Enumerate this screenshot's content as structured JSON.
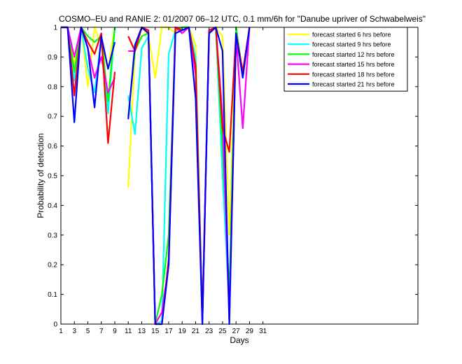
{
  "chart_data": {
    "type": "line",
    "title": "COSMO–EU and RANIE 2: 01/2007 06–12 UTC, 0.1 mm/6h for \"Danube upriver of Schwabelweis\"",
    "xlabel": "Days",
    "ylabel": "Probability of detection",
    "xlim": [
      1,
      54
    ],
    "ylim": [
      0,
      1
    ],
    "x_ticks": [
      1,
      3,
      5,
      7,
      9,
      11,
      13,
      15,
      17,
      19,
      21,
      23,
      25,
      27,
      29,
      31
    ],
    "y_ticks": [
      0,
      0.1,
      0.2,
      0.3,
      0.4,
      0.5,
      0.6,
      0.7,
      0.8,
      0.9,
      1
    ],
    "y_tick_labels": [
      "0",
      "0.1",
      "0.2",
      "0.3",
      "0.4",
      "0.5",
      "0.6",
      "0.7",
      "0.8",
      "0.9",
      "1"
    ],
    "legend_position": "top-right",
    "series": [
      {
        "name": "forecast started 6 hrs before",
        "color": "#ffff00",
        "points": [
          [
            1,
            1
          ],
          [
            2,
            1
          ],
          [
            3,
            0.88
          ],
          [
            4,
            1
          ],
          [
            5,
            0.8
          ],
          [
            6,
            1
          ],
          [
            7,
            0.94
          ],
          [
            8,
            0.86
          ],
          [
            9,
            1
          ],
          null,
          [
            11,
            0.46
          ],
          [
            12,
            0.92
          ],
          [
            13,
            1
          ],
          [
            14,
            0.97
          ],
          [
            15,
            0.83
          ],
          [
            16,
            1
          ],
          [
            17,
            1
          ],
          [
            18,
            0.98
          ],
          [
            19,
            1
          ],
          [
            20,
            1
          ],
          [
            21,
            0.94
          ],
          [
            22,
            0.03
          ],
          [
            23,
            0.98
          ],
          [
            24,
            1
          ],
          [
            25,
            0.97
          ],
          [
            26,
            0.3
          ],
          [
            27,
            1
          ],
          [
            28,
            0.84
          ],
          [
            29,
            1
          ]
        ]
      },
      {
        "name": "forecast started 9 hrs before",
        "color": "#00ffff",
        "points": [
          [
            1,
            1
          ],
          [
            2,
            1
          ],
          [
            3,
            0.82
          ],
          [
            4,
            1
          ],
          [
            5,
            0.86
          ],
          [
            6,
            0.78
          ],
          [
            7,
            0.96
          ],
          [
            8,
            0.71
          ],
          [
            9,
            1
          ],
          null,
          [
            11,
            0.77
          ],
          [
            12,
            0.64
          ],
          [
            13,
            0.93
          ],
          [
            14,
            0.97
          ],
          [
            15,
            0
          ],
          [
            16,
            0.01
          ],
          [
            17,
            0.91
          ],
          [
            18,
            0.99
          ],
          [
            19,
            1
          ],
          [
            20,
            1
          ],
          [
            21,
            0.9
          ],
          [
            22,
            0.02
          ],
          [
            23,
            0.98
          ],
          [
            24,
            1
          ],
          [
            25,
            0.5
          ],
          [
            26,
            0.05
          ],
          [
            27,
            1
          ],
          [
            28,
            0.84
          ],
          [
            29,
            1
          ]
        ]
      },
      {
        "name": "forecast started 12 hrs before",
        "color": "#00ff00",
        "points": [
          [
            1,
            1
          ],
          [
            2,
            1
          ],
          [
            3,
            0.85
          ],
          [
            4,
            1
          ],
          [
            5,
            0.97
          ],
          [
            6,
            0.95
          ],
          [
            7,
            0.97
          ],
          [
            8,
            0.75
          ],
          [
            9,
            1
          ],
          null,
          [
            11,
            0.7
          ],
          [
            12,
            0.92
          ],
          [
            13,
            0.97
          ],
          [
            14,
            0.98
          ],
          [
            15,
            0
          ],
          [
            16,
            0.1
          ],
          [
            17,
            0.3
          ],
          [
            18,
            0.99
          ],
          [
            19,
            1
          ],
          [
            20,
            1
          ],
          [
            21,
            0.87
          ],
          [
            22,
            0.02
          ],
          [
            23,
            0.98
          ],
          [
            24,
            1
          ],
          [
            25,
            0.6
          ],
          [
            26,
            0.1
          ],
          [
            27,
            1
          ],
          [
            28,
            0.84
          ],
          [
            29,
            1
          ]
        ]
      },
      {
        "name": "forecast started 15 hrs before",
        "color": "#ff00ff",
        "points": [
          [
            1,
            1
          ],
          [
            2,
            1
          ],
          [
            3,
            0.9
          ],
          [
            4,
            1
          ],
          [
            5,
            0.93
          ],
          [
            6,
            0.83
          ],
          [
            7,
            0.9
          ],
          [
            8,
            0.78
          ],
          [
            9,
            0.83
          ],
          null,
          [
            11,
            0.92
          ],
          [
            12,
            0.92
          ],
          [
            13,
            1
          ],
          [
            14,
            0.98
          ],
          [
            15,
            0
          ],
          [
            16,
            0.04
          ],
          [
            17,
            0.2
          ],
          [
            18,
            1
          ],
          [
            19,
            0.98
          ],
          [
            20,
            1
          ],
          [
            21,
            0.84
          ],
          [
            22,
            0.02
          ],
          [
            23,
            0.99
          ],
          [
            24,
            1
          ],
          [
            25,
            0.7
          ],
          [
            26,
            0.01
          ],
          [
            27,
            0.97
          ],
          [
            28,
            0.66
          ],
          [
            29,
            1
          ]
        ]
      },
      {
        "name": "forecast started 18 hrs before",
        "color": "#ff0000",
        "points": [
          [
            1,
            1
          ],
          [
            2,
            1
          ],
          [
            3,
            0.77
          ],
          [
            4,
            1
          ],
          [
            5,
            0.95
          ],
          [
            6,
            0.91
          ],
          [
            7,
            0.98
          ],
          [
            8,
            0.61
          ],
          [
            9,
            0.85
          ],
          null,
          [
            11,
            0.97
          ],
          [
            12,
            0.92
          ],
          [
            13,
            1
          ],
          [
            14,
            0.99
          ],
          [
            15,
            0
          ],
          [
            16,
            0
          ],
          [
            17,
            0.22
          ],
          [
            18,
            1
          ],
          [
            19,
            0.99
          ],
          [
            20,
            1
          ],
          [
            21,
            0.87
          ],
          [
            22,
            0
          ],
          [
            23,
            0.99
          ],
          [
            24,
            1
          ],
          [
            25,
            0.66
          ],
          [
            26,
            0.58
          ],
          [
            27,
            0.98
          ],
          [
            28,
            0.85
          ],
          [
            29,
            1
          ]
        ]
      },
      {
        "name": "forecast started 21 hrs before",
        "color": "#0000ff",
        "points": [
          [
            1,
            1
          ],
          [
            2,
            1
          ],
          [
            3,
            0.68
          ],
          [
            4,
            1
          ],
          [
            5,
            0.93
          ],
          [
            6,
            0.73
          ],
          [
            7,
            0.97
          ],
          [
            8,
            0.86
          ],
          [
            9,
            0.95
          ],
          null,
          [
            11,
            0.69
          ],
          [
            12,
            0.94
          ],
          [
            13,
            1
          ],
          [
            14,
            0.98
          ],
          [
            15,
            0
          ],
          [
            16,
            0
          ],
          [
            17,
            0.2
          ],
          [
            18,
            0.98
          ],
          [
            19,
            0.99
          ],
          [
            20,
            1
          ],
          [
            21,
            0.76
          ],
          [
            22,
            0
          ],
          [
            23,
            0.98
          ],
          [
            24,
            1
          ],
          [
            25,
            0.92
          ],
          [
            26,
            0
          ],
          [
            27,
            0.98
          ],
          [
            28,
            0.83
          ],
          [
            29,
            1
          ]
        ]
      }
    ]
  }
}
